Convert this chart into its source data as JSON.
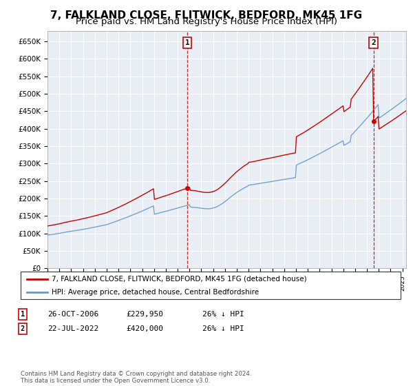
{
  "title": "7, FALKLAND CLOSE, FLITWICK, BEDFORD, MK45 1FG",
  "subtitle": "Price paid vs. HM Land Registry's House Price Index (HPI)",
  "ylim": [
    0,
    680000
  ],
  "yticks": [
    0,
    50000,
    100000,
    150000,
    200000,
    250000,
    300000,
    350000,
    400000,
    450000,
    500000,
    550000,
    600000,
    650000
  ],
  "ytick_labels": [
    "£0",
    "£50K",
    "£100K",
    "£150K",
    "£200K",
    "£250K",
    "£300K",
    "£350K",
    "£400K",
    "£450K",
    "£500K",
    "£550K",
    "£600K",
    "£650K"
  ],
  "hpi_color": "#6699cc",
  "sale_color": "#cc0000",
  "marker1_x": 2006.82,
  "marker1_y": 229950,
  "marker2_x": 2022.55,
  "marker2_y": 420000,
  "vline1_x": 2006.82,
  "vline2_x": 2022.55,
  "xlim_left": 1995,
  "xlim_right": 2025.3,
  "legend_line1": "7, FALKLAND CLOSE, FLITWICK, BEDFORD, MK45 1FG (detached house)",
  "legend_line2": "HPI: Average price, detached house, Central Bedfordshire",
  "table_rows": [
    {
      "num": "1",
      "date": "26-OCT-2006",
      "price": "£229,950",
      "change": "26% ↓ HPI"
    },
    {
      "num": "2",
      "date": "22-JUL-2022",
      "price": "£420,000",
      "change": "26% ↓ HPI"
    }
  ],
  "footer": "Contains HM Land Registry data © Crown copyright and database right 2024.\nThis data is licensed under the Open Government Licence v3.0.",
  "chart_bg": "#e8eef4",
  "grid_color": "#ffffff",
  "title_fontsize": 11,
  "subtitle_fontsize": 9.5
}
